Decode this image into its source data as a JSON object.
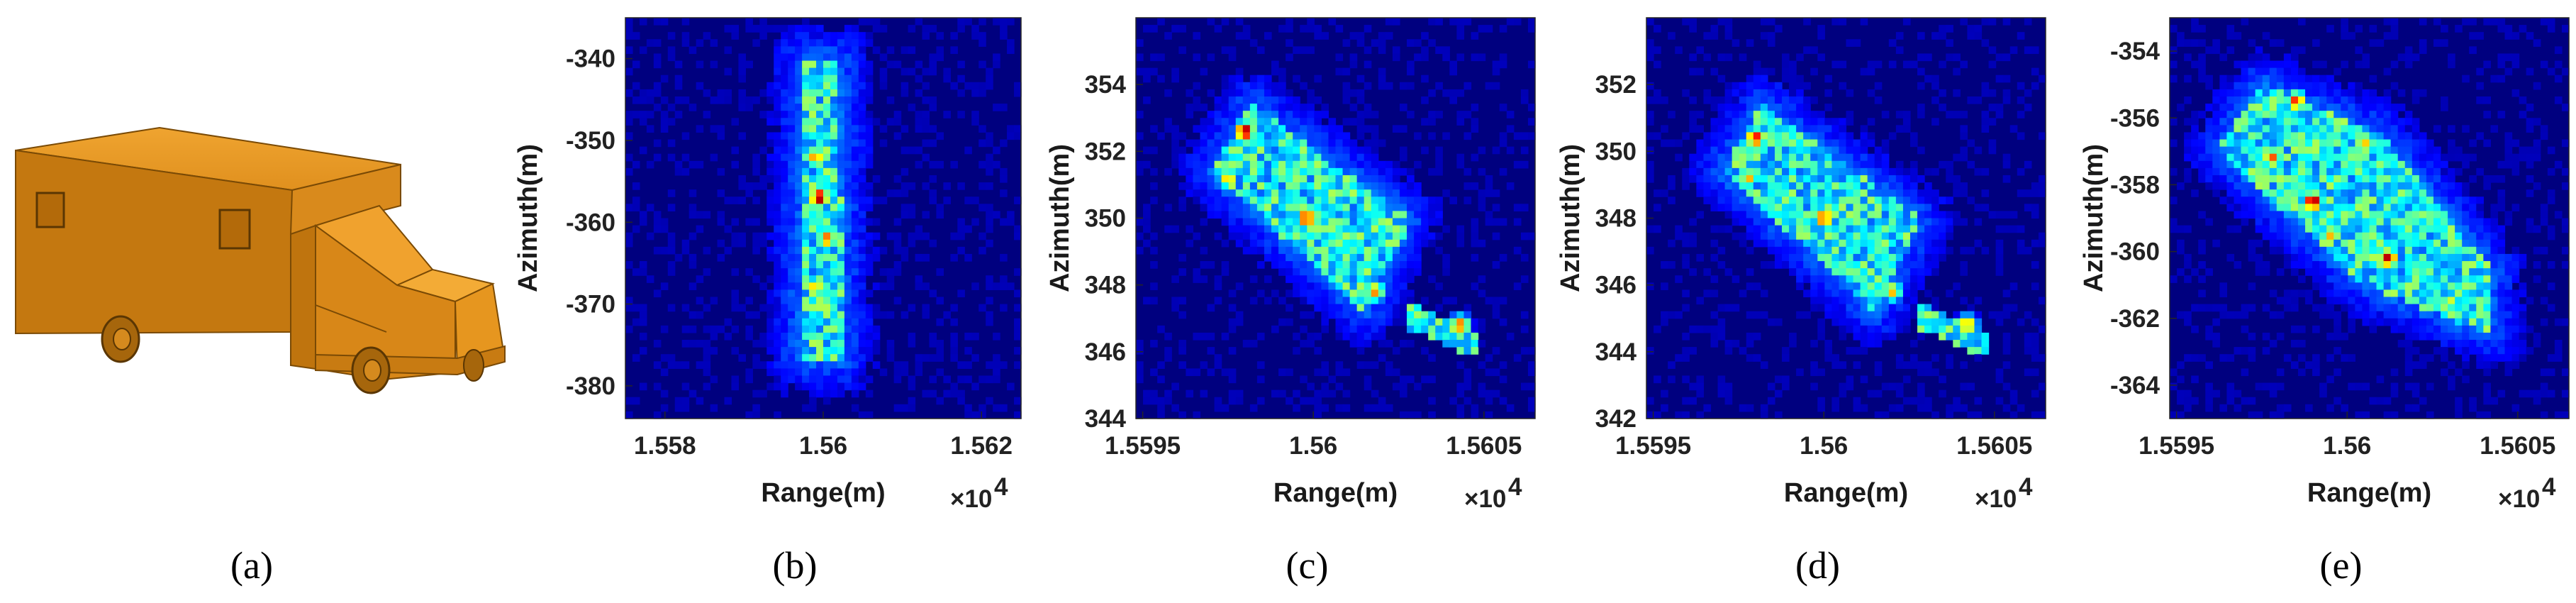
{
  "colormap": {
    "name": "jet",
    "low": "#00007f",
    "mid": "#00c8ff",
    "high": "#ff2a00"
  },
  "panel_a": {
    "caption": "(a)",
    "model_colors": {
      "body_side": "#c77a0d",
      "body_top": "#e89a25",
      "cab_front": "#f0a030",
      "wheel": "#8a5708"
    }
  },
  "chart_data": [
    {
      "id": "b",
      "caption": "(b)",
      "type": "heatmap",
      "xlabel": "Range(m)",
      "ylabel": "Azimuth(m)",
      "x_multiplier": "×10",
      "x_multiplier_exp": "4",
      "xlim": [
        15575,
        15625
      ],
      "ylim": [
        -384,
        -335
      ],
      "xticks": [
        15580,
        15600,
        15620
      ],
      "xtick_labels": [
        "1.558",
        "1.56",
        "1.562"
      ],
      "yticks": [
        -340,
        -350,
        -360,
        -370,
        -380
      ],
      "ytick_labels": [
        "-340",
        "-350",
        "-360",
        "-370",
        "-380"
      ],
      "target": {
        "polygon": [
          [
            15597.5,
            -340
          ],
          [
            15602.0,
            -340
          ],
          [
            15602.5,
            -377
          ],
          [
            15597.0,
            -377
          ]
        ],
        "hotspots": [
          [
            15599.5,
            -357,
            1.0
          ],
          [
            15599.0,
            -352,
            0.75
          ],
          [
            15600.5,
            -362,
            0.8
          ],
          [
            15599.0,
            -368,
            0.7
          ],
          [
            15600.5,
            -343,
            0.55
          ]
        ]
      }
    },
    {
      "id": "c",
      "caption": "(c)",
      "type": "heatmap",
      "xlabel": "Range(m)",
      "ylabel": "Azimuth(m)",
      "x_multiplier": "×10",
      "x_multiplier_exp": "4",
      "xlim": [
        15594.8,
        15606.5
      ],
      "ylim": [
        344,
        356
      ],
      "xticks": [
        15595,
        15600,
        15605
      ],
      "xtick_labels": [
        "1.5595",
        "1.56",
        "1.5605"
      ],
      "yticks": [
        344,
        346,
        348,
        350,
        352,
        354
      ],
      "ytick_labels": [
        "344",
        "346",
        "348",
        "350",
        "352",
        "354"
      ],
      "target": {
        "polygon": [
          [
            15598.2,
            353.4
          ],
          [
            15602.8,
            350.0
          ],
          [
            15601.5,
            347.2
          ],
          [
            15597.0,
            351.4
          ]
        ],
        "tail": [
          [
            15603.0,
            347.0
          ],
          [
            15604.5,
            346.3
          ]
        ],
        "hotspots": [
          [
            15598.0,
            352.6,
            1.0
          ],
          [
            15599.8,
            350.0,
            0.9
          ],
          [
            15601.8,
            347.8,
            0.75
          ],
          [
            15604.3,
            346.8,
            0.8
          ],
          [
            15602.5,
            349.6,
            0.6
          ],
          [
            15597.5,
            351.2,
            0.7
          ]
        ]
      }
    },
    {
      "id": "d",
      "caption": "(d)",
      "type": "heatmap",
      "xlabel": "Range(m)",
      "ylabel": "Azimuth(m)",
      "x_multiplier": "×10",
      "x_multiplier_exp": "4",
      "xlim": [
        15594.8,
        15606.5
      ],
      "ylim": [
        342,
        354
      ],
      "xticks": [
        15595,
        15600,
        15605
      ],
      "xtick_labels": [
        "1.5595",
        "1.56",
        "1.5605"
      ],
      "yticks": [
        342,
        344,
        346,
        348,
        350,
        352
      ],
      "ytick_labels": [
        "342",
        "344",
        "346",
        "348",
        "350",
        "352"
      ],
      "target": {
        "polygon": [
          [
            15598.2,
            351.4
          ],
          [
            15602.8,
            348.0
          ],
          [
            15601.5,
            345.2
          ],
          [
            15597.0,
            349.4
          ]
        ],
        "tail": [
          [
            15603.0,
            345.0
          ],
          [
            15604.5,
            344.3
          ]
        ],
        "hotspots": [
          [
            15598.0,
            350.4,
            0.9
          ],
          [
            15600.0,
            348.0,
            0.85
          ],
          [
            15602.0,
            345.8,
            0.7
          ],
          [
            15604.2,
            344.8,
            0.75
          ],
          [
            15597.8,
            349.2,
            0.7
          ]
        ]
      }
    },
    {
      "id": "e",
      "caption": "(e)",
      "type": "heatmap",
      "xlabel": "Range(m)",
      "ylabel": "Azimuth(m)",
      "x_multiplier": "×10",
      "x_multiplier_exp": "4",
      "xlim": [
        15594.8,
        15606.5
      ],
      "ylim": [
        -365,
        -353
      ],
      "xticks": [
        15595,
        15600,
        15605
      ],
      "xtick_labels": [
        "1.5595",
        "1.56",
        "1.5605"
      ],
      "yticks": [
        -354,
        -356,
        -358,
        -360,
        -362,
        -364
      ],
      "ytick_labels": [
        "-354",
        "-356",
        "-358",
        "-360",
        "-362",
        "-364"
      ],
      "target": {
        "polygon": [
          [
            15597.5,
            -355.0
          ],
          [
            15601.0,
            -356.5
          ],
          [
            15604.2,
            -360.5
          ],
          [
            15604.2,
            -362.5
          ],
          [
            15600.5,
            -361.0
          ],
          [
            15596.2,
            -357.0
          ]
        ],
        "hotspots": [
          [
            15598.5,
            -355.5,
            0.85
          ],
          [
            15597.8,
            -357.2,
            0.8
          ],
          [
            15599.0,
            -358.5,
            1.0
          ],
          [
            15601.2,
            -360.2,
            0.95
          ],
          [
            15600.5,
            -356.8,
            0.7
          ],
          [
            15603.0,
            -361.5,
            0.6
          ],
          [
            15599.5,
            -359.5,
            0.7
          ]
        ]
      }
    }
  ]
}
